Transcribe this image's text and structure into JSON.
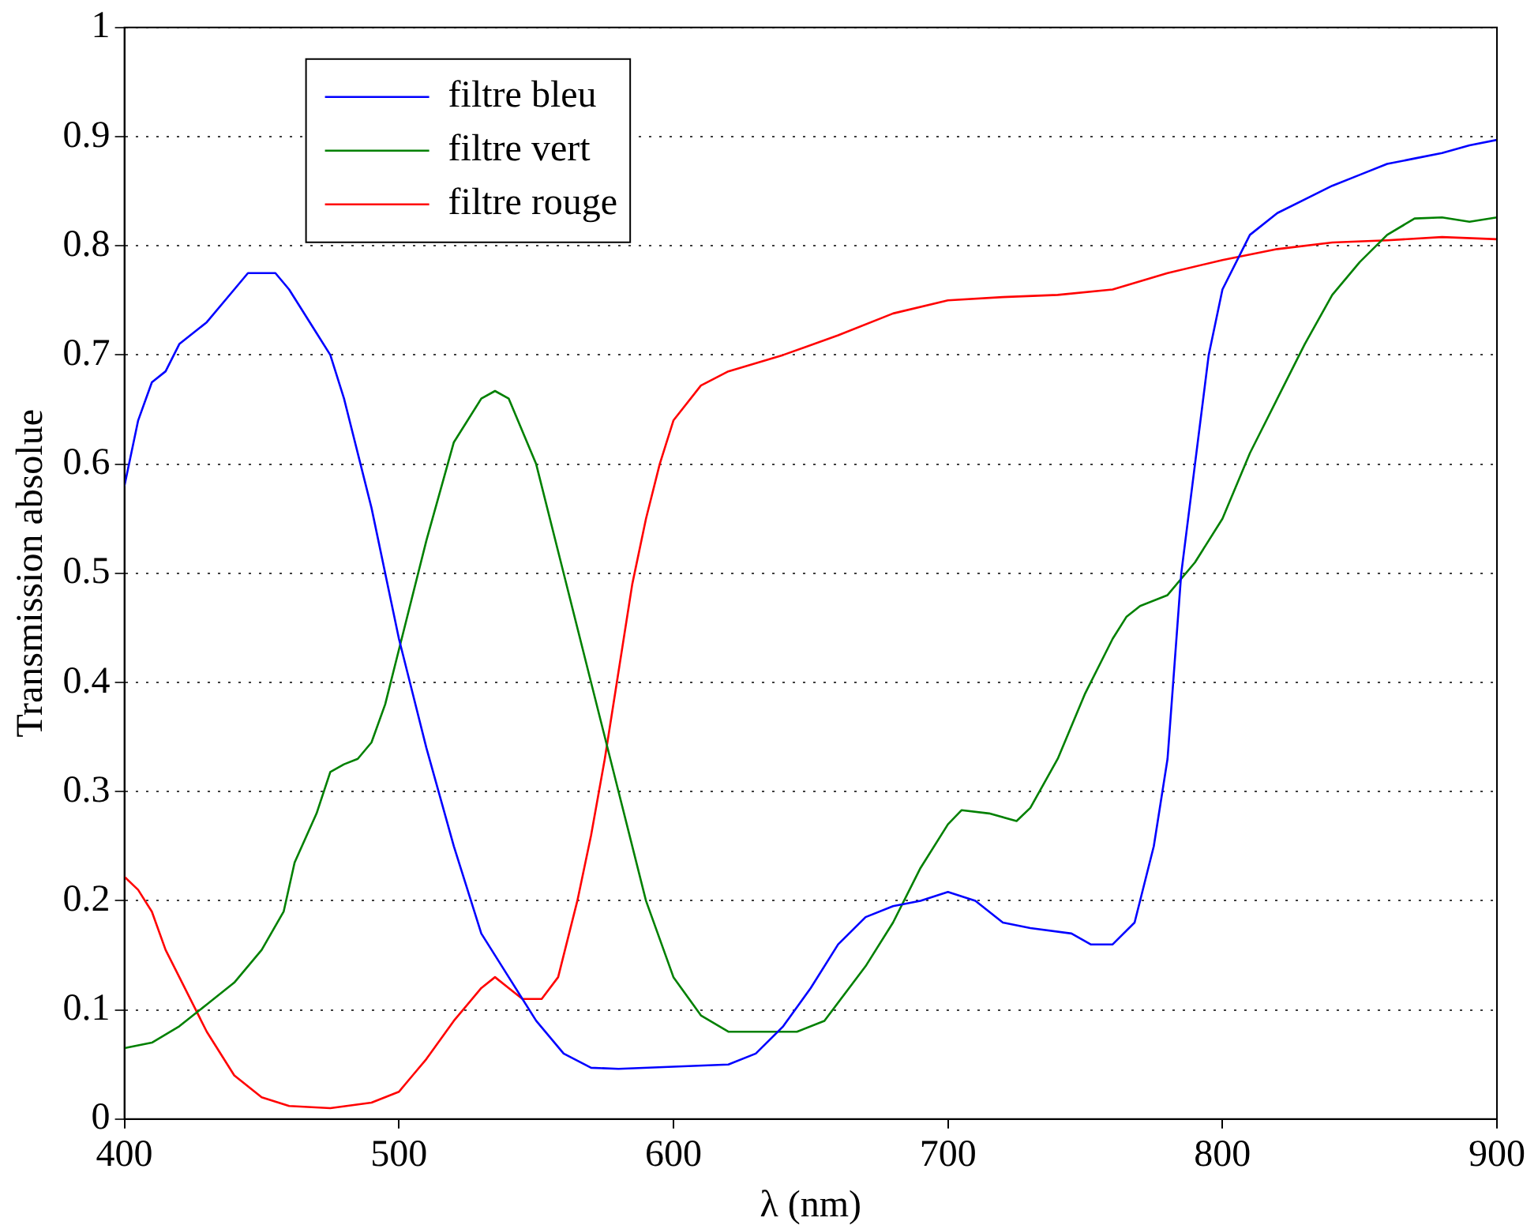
{
  "chart_data": {
    "type": "line",
    "xlabel": "λ (nm)",
    "ylabel": "Transmission absolue",
    "xlim": [
      400,
      900
    ],
    "xticks": [
      400,
      500,
      600,
      700,
      800,
      900
    ],
    "ylim": [
      0,
      1
    ],
    "yticks": [
      0,
      0.1,
      0.2,
      0.3,
      0.4,
      0.5,
      0.6,
      0.7,
      0.8,
      0.9,
      1
    ],
    "grid": "y",
    "legend": "top left",
    "line_style": "solid",
    "marker": "none",
    "series": [
      {
        "name": "filtre bleu",
        "color": "#0000ff",
        "x": [
          400,
          405,
          410,
          415,
          420,
          430,
          440,
          445,
          455,
          460,
          470,
          475,
          480,
          490,
          500,
          510,
          520,
          530,
          540,
          550,
          560,
          570,
          580,
          600,
          620,
          630,
          640,
          650,
          660,
          670,
          680,
          690,
          700,
          710,
          720,
          730,
          745,
          752,
          760,
          768,
          775,
          780,
          785,
          790,
          795,
          800,
          810,
          820,
          840,
          850,
          860,
          870,
          880,
          890,
          900
        ],
        "values": [
          0.58,
          0.64,
          0.675,
          0.685,
          0.71,
          0.73,
          0.76,
          0.775,
          0.775,
          0.76,
          0.72,
          0.7,
          0.66,
          0.56,
          0.44,
          0.34,
          0.25,
          0.17,
          0.13,
          0.09,
          0.06,
          0.047,
          0.046,
          0.048,
          0.05,
          0.06,
          0.085,
          0.12,
          0.16,
          0.185,
          0.195,
          0.2,
          0.208,
          0.2,
          0.18,
          0.175,
          0.17,
          0.16,
          0.16,
          0.18,
          0.25,
          0.33,
          0.5,
          0.6,
          0.7,
          0.76,
          0.81,
          0.83,
          0.855,
          0.865,
          0.875,
          0.88,
          0.885,
          0.892,
          0.897
        ]
      },
      {
        "name": "filtre vert",
        "color": "#008000",
        "x": [
          400,
          410,
          420,
          430,
          440,
          450,
          458,
          462,
          470,
          475,
          480,
          485,
          490,
          495,
          500,
          510,
          520,
          530,
          535,
          540,
          550,
          560,
          570,
          580,
          590,
          600,
          610,
          620,
          630,
          645,
          655,
          670,
          680,
          690,
          700,
          705,
          715,
          725,
          730,
          740,
          750,
          760,
          765,
          770,
          780,
          790,
          800,
          810,
          820,
          830,
          840,
          850,
          860,
          870,
          880,
          890,
          900
        ],
        "values": [
          0.065,
          0.07,
          0.085,
          0.105,
          0.125,
          0.155,
          0.19,
          0.235,
          0.28,
          0.318,
          0.325,
          0.33,
          0.345,
          0.38,
          0.43,
          0.53,
          0.62,
          0.66,
          0.667,
          0.66,
          0.6,
          0.5,
          0.4,
          0.3,
          0.2,
          0.13,
          0.095,
          0.08,
          0.08,
          0.08,
          0.09,
          0.14,
          0.18,
          0.23,
          0.27,
          0.283,
          0.28,
          0.273,
          0.285,
          0.33,
          0.39,
          0.44,
          0.46,
          0.47,
          0.48,
          0.51,
          0.55,
          0.61,
          0.66,
          0.71,
          0.755,
          0.785,
          0.81,
          0.825,
          0.826,
          0.822,
          0.826
        ]
      },
      {
        "name": "filtre rouge",
        "color": "#ff0000",
        "x": [
          400,
          405,
          410,
          415,
          420,
          430,
          440,
          450,
          460,
          475,
          490,
          500,
          505,
          510,
          520,
          530,
          535,
          540,
          545,
          552,
          558,
          565,
          570,
          575,
          580,
          585,
          590,
          595,
          600,
          610,
          620,
          640,
          660,
          680,
          700,
          720,
          740,
          760,
          780,
          800,
          820,
          840,
          860,
          880,
          900
        ],
        "values": [
          0.222,
          0.21,
          0.19,
          0.155,
          0.13,
          0.08,
          0.04,
          0.02,
          0.012,
          0.01,
          0.015,
          0.025,
          0.04,
          0.055,
          0.09,
          0.12,
          0.13,
          0.12,
          0.11,
          0.11,
          0.13,
          0.2,
          0.26,
          0.33,
          0.41,
          0.49,
          0.55,
          0.6,
          0.64,
          0.672,
          0.685,
          0.7,
          0.718,
          0.738,
          0.75,
          0.753,
          0.755,
          0.76,
          0.775,
          0.787,
          0.797,
          0.803,
          0.805,
          0.808,
          0.806
        ]
      }
    ]
  }
}
